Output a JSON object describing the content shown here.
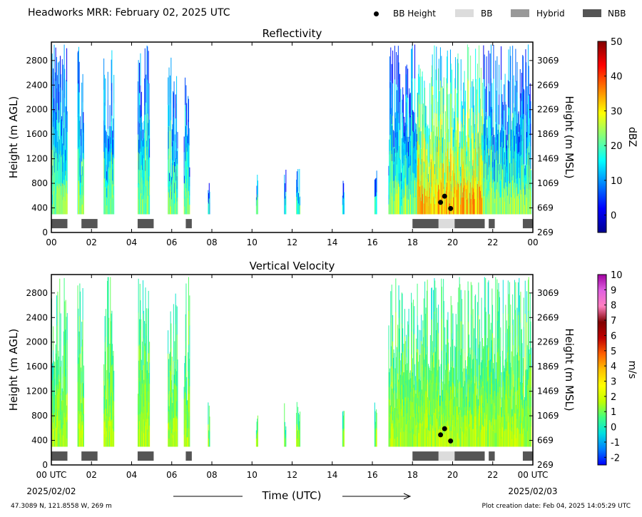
{
  "suptitle": "Headworks MRR:  February 02, 2025 UTC",
  "legend": [
    {
      "label": "BB Height",
      "kind": "dot",
      "color": "#000000"
    },
    {
      "label": "BB",
      "kind": "box",
      "color": "#dcdcdc"
    },
    {
      "label": "Hybrid",
      "kind": "box",
      "color": "#999999"
    },
    {
      "label": "NBB",
      "kind": "box",
      "color": "#555555"
    }
  ],
  "footer": {
    "location": "47.3089 N, 121.8558 W, 269 m",
    "created": "Plot creation date: Feb 04, 2025 14:05:29 UTC"
  },
  "chart_data": [
    {
      "type": "heatmap",
      "title": "Reflectivity",
      "ylabel": "Height (m AGL)",
      "ylabel2": "Height (m MSL)",
      "ylim": [
        0,
        3100
      ],
      "yticks": [
        0,
        400,
        800,
        1200,
        1600,
        2000,
        2400,
        2800
      ],
      "yticks2_labels": [
        "269",
        "669",
        "1069",
        "1469",
        "1869",
        "2269",
        "2669",
        "3069"
      ],
      "xlim": [
        0,
        24
      ],
      "xticks_labels": [
        "00",
        "02",
        "04",
        "06",
        "08",
        "10",
        "12",
        "14",
        "16",
        "18",
        "20",
        "22",
        "00"
      ],
      "colorbar": {
        "label": "dBZ",
        "range": [
          -5,
          50
        ],
        "ticks": [
          0,
          10,
          20,
          30,
          40,
          50
        ],
        "colors": [
          "#00008f",
          "#0000ff",
          "#0080ff",
          "#00ffff",
          "#80ff80",
          "#ffff00",
          "#ff8000",
          "#ff0000",
          "#800000"
        ]
      },
      "precip_segments_utc": [
        [
          0.0,
          0.8
        ],
        [
          1.3,
          1.6
        ],
        [
          2.6,
          3.1
        ],
        [
          4.3,
          4.9
        ],
        [
          5.8,
          6.3
        ],
        [
          6.6,
          6.9
        ],
        [
          7.8,
          7.9
        ],
        [
          10.2,
          10.3
        ],
        [
          11.6,
          11.7
        ],
        [
          12.2,
          12.4
        ],
        [
          14.5,
          14.6
        ],
        [
          16.1,
          16.2
        ],
        [
          16.8,
          23.9
        ]
      ],
      "bb_height_points": [
        {
          "t": 19.4,
          "h": 490
        },
        {
          "t": 19.6,
          "h": 590
        },
        {
          "t": 19.9,
          "h": 390
        }
      ],
      "bb_type_bar": [
        {
          "start": 0.0,
          "end": 0.8,
          "type": "NBB"
        },
        {
          "start": 1.5,
          "end": 2.3,
          "type": "NBB"
        },
        {
          "start": 4.3,
          "end": 5.1,
          "type": "NBB"
        },
        {
          "start": 6.7,
          "end": 7.0,
          "type": "NBB"
        },
        {
          "start": 18.0,
          "end": 19.3,
          "type": "NBB"
        },
        {
          "start": 19.3,
          "end": 20.1,
          "type": "BB"
        },
        {
          "start": 20.1,
          "end": 21.6,
          "type": "NBB"
        },
        {
          "start": 21.8,
          "end": 22.1,
          "type": "NBB"
        },
        {
          "start": 23.5,
          "end": 24.0,
          "type": "NBB"
        }
      ]
    },
    {
      "type": "heatmap",
      "title": "Vertical Velocity",
      "ylabel": "Height (m AGL)",
      "ylabel2": "Height (m MSL)",
      "xlabel": "Time (UTC)",
      "ylim": [
        0,
        3100
      ],
      "yticks": [
        0,
        400,
        800,
        1200,
        1600,
        2000,
        2400,
        2800
      ],
      "yticks2_labels": [
        "269",
        "669",
        "1069",
        "1469",
        "1869",
        "2269",
        "2669",
        "3069"
      ],
      "xlim": [
        0,
        24
      ],
      "xticks_labels": [
        "00 UTC",
        "02",
        "04",
        "06",
        "08",
        "10",
        "12",
        "14",
        "16",
        "18",
        "20",
        "22",
        "00 UTC"
      ],
      "date_start": "2025/02/02",
      "date_end": "2025/02/03",
      "colorbar": {
        "label": "m/s",
        "range": [
          -2.5,
          10
        ],
        "ticks": [
          -2,
          -1,
          0,
          1,
          2,
          3,
          4,
          5,
          6,
          7,
          8,
          9,
          10
        ],
        "colors": [
          "#0000ff",
          "#0080ff",
          "#00e0e0",
          "#40ff80",
          "#c0ff00",
          "#ffff00",
          "#ffc000",
          "#ff6000",
          "#c00000",
          "#800000",
          "#ff80c0",
          "#e060e0",
          "#a000a0"
        ]
      },
      "precip_segments_utc": [
        [
          0.0,
          0.8
        ],
        [
          1.3,
          1.6
        ],
        [
          2.6,
          3.1
        ],
        [
          4.3,
          4.9
        ],
        [
          5.8,
          6.3
        ],
        [
          6.6,
          6.9
        ],
        [
          7.8,
          7.9
        ],
        [
          10.2,
          10.3
        ],
        [
          11.6,
          11.7
        ],
        [
          12.2,
          12.4
        ],
        [
          14.5,
          14.6
        ],
        [
          16.1,
          16.2
        ],
        [
          16.8,
          23.9
        ]
      ],
      "bb_height_points": [
        {
          "t": 19.4,
          "h": 490
        },
        {
          "t": 19.6,
          "h": 590
        },
        {
          "t": 19.9,
          "h": 390
        }
      ],
      "bb_type_bar": [
        {
          "start": 0.0,
          "end": 0.8,
          "type": "NBB"
        },
        {
          "start": 1.5,
          "end": 2.3,
          "type": "NBB"
        },
        {
          "start": 4.3,
          "end": 5.1,
          "type": "NBB"
        },
        {
          "start": 6.7,
          "end": 7.0,
          "type": "NBB"
        },
        {
          "start": 18.0,
          "end": 19.3,
          "type": "NBB"
        },
        {
          "start": 19.3,
          "end": 20.1,
          "type": "BB"
        },
        {
          "start": 20.1,
          "end": 21.6,
          "type": "NBB"
        },
        {
          "start": 21.8,
          "end": 22.1,
          "type": "NBB"
        },
        {
          "start": 23.5,
          "end": 24.0,
          "type": "NBB"
        }
      ]
    }
  ]
}
